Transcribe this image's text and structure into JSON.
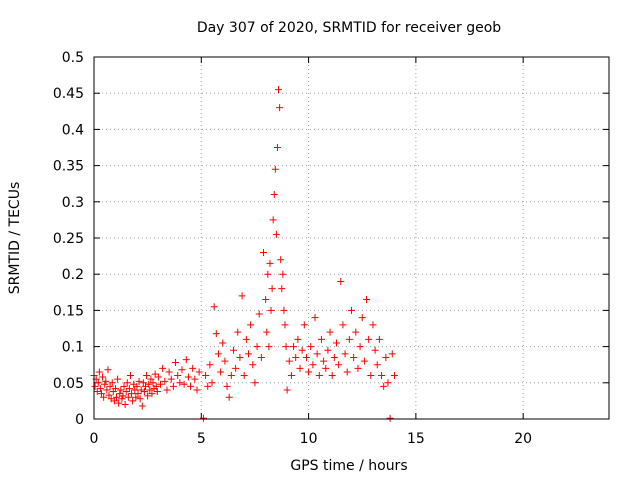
{
  "chart_data": {
    "type": "scatter",
    "title": "Day 307 of 2020, SRMTID for receiver geob",
    "xlabel": "GPS time / hours",
    "ylabel": "SRMTID / TECUs",
    "xlim": [
      0,
      24
    ],
    "ylim": [
      0,
      0.5
    ],
    "x_ticks": [
      0,
      5,
      10,
      15,
      20
    ],
    "x_tick_labels": [
      "0",
      "5",
      "10",
      "15",
      "20"
    ],
    "y_ticks": [
      0,
      0.05,
      0.1,
      0.15,
      0.2,
      0.25,
      0.3,
      0.35,
      0.4,
      0.45,
      0.5
    ],
    "y_tick_labels": [
      "0",
      "0.05",
      "0.1",
      "0.15",
      "0.2",
      "0.25",
      "0.3",
      "0.35",
      "0.4",
      "0.45",
      "0.5"
    ],
    "grid": true,
    "marker_color": "#ff0000",
    "series": [
      {
        "name": "SRMTID",
        "marker": "plus",
        "points": [
          [
            0.0,
            0.06
          ],
          [
            0.05,
            0.045
          ],
          [
            0.1,
            0.055
          ],
          [
            0.15,
            0.038
          ],
          [
            0.2,
            0.05
          ],
          [
            0.25,
            0.065
          ],
          [
            0.3,
            0.042
          ],
          [
            0.35,
            0.035
          ],
          [
            0.4,
            0.058
          ],
          [
            0.45,
            0.03
          ],
          [
            0.5,
            0.048
          ],
          [
            0.55,
            0.052
          ],
          [
            0.6,
            0.04
          ],
          [
            0.65,
            0.068
          ],
          [
            0.7,
            0.033
          ],
          [
            0.75,
            0.045
          ],
          [
            0.8,
            0.028
          ],
          [
            0.85,
            0.05
          ],
          [
            0.9,
            0.038
          ],
          [
            0.95,
            0.025
          ],
          [
            1.0,
            0.042
          ],
          [
            1.05,
            0.03
          ],
          [
            1.1,
            0.055
          ],
          [
            1.15,
            0.022
          ],
          [
            1.2,
            0.035
          ],
          [
            1.25,
            0.04
          ],
          [
            1.3,
            0.028
          ],
          [
            1.35,
            0.032
          ],
          [
            1.4,
            0.045
          ],
          [
            1.45,
            0.02
          ],
          [
            1.5,
            0.038
          ],
          [
            1.55,
            0.05
          ],
          [
            1.6,
            0.03
          ],
          [
            1.65,
            0.042
          ],
          [
            1.7,
            0.06
          ],
          [
            1.75,
            0.035
          ],
          [
            1.8,
            0.025
          ],
          [
            1.85,
            0.048
          ],
          [
            1.9,
            0.04
          ],
          [
            1.95,
            0.03
          ],
          [
            2.0,
            0.045
          ],
          [
            2.05,
            0.035
          ],
          [
            2.1,
            0.052
          ],
          [
            2.15,
            0.028
          ],
          [
            2.2,
            0.04
          ],
          [
            2.25,
            0.018
          ],
          [
            2.3,
            0.05
          ],
          [
            2.35,
            0.038
          ],
          [
            2.4,
            0.045
          ],
          [
            2.45,
            0.06
          ],
          [
            2.5,
            0.032
          ],
          [
            2.55,
            0.048
          ],
          [
            2.6,
            0.04
          ],
          [
            2.65,
            0.055
          ],
          [
            2.7,
            0.035
          ],
          [
            2.75,
            0.05
          ],
          [
            2.8,
            0.042
          ],
          [
            2.85,
            0.062
          ],
          [
            2.9,
            0.045
          ],
          [
            2.95,
            0.038
          ],
          [
            3.0,
            0.058
          ],
          [
            3.1,
            0.048
          ],
          [
            3.2,
            0.07
          ],
          [
            3.3,
            0.052
          ],
          [
            3.4,
            0.04
          ],
          [
            3.5,
            0.065
          ],
          [
            3.6,
            0.055
          ],
          [
            3.7,
            0.045
          ],
          [
            3.8,
            0.078
          ],
          [
            3.9,
            0.06
          ],
          [
            4.0,
            0.05
          ],
          [
            4.1,
            0.068
          ],
          [
            4.2,
            0.048
          ],
          [
            4.3,
            0.082
          ],
          [
            4.4,
            0.058
          ],
          [
            4.5,
            0.045
          ],
          [
            4.6,
            0.07
          ],
          [
            4.7,
            0.055
          ],
          [
            4.8,
            0.04
          ],
          [
            4.9,
            0.065
          ],
          [
            5.1,
            0.001
          ],
          [
            5.2,
            0.06
          ],
          [
            5.3,
            0.045
          ],
          [
            5.4,
            0.075
          ],
          [
            5.5,
            0.05
          ],
          [
            5.6,
            0.155
          ],
          [
            5.7,
            0.118
          ],
          [
            5.8,
            0.09
          ],
          [
            5.9,
            0.065
          ],
          [
            6.0,
            0.105
          ],
          [
            6.1,
            0.08
          ],
          [
            6.2,
            0.045
          ],
          [
            6.3,
            0.03
          ],
          [
            6.4,
            0.06
          ],
          [
            6.5,
            0.095
          ],
          [
            6.6,
            0.07
          ],
          [
            6.7,
            0.12
          ],
          [
            6.8,
            0.085
          ],
          [
            6.9,
            0.17
          ],
          [
            7.0,
            0.06
          ],
          [
            7.1,
            0.11
          ],
          [
            7.2,
            0.09
          ],
          [
            7.3,
            0.13
          ],
          [
            7.4,
            0.075
          ],
          [
            7.5,
            0.05
          ],
          [
            7.6,
            0.1
          ],
          [
            7.7,
            0.145
          ],
          [
            7.8,
            0.085
          ],
          [
            7.9,
            0.23
          ],
          [
            8.0,
            0.165
          ],
          [
            8.05,
            0.12
          ],
          [
            8.1,
            0.2
          ],
          [
            8.15,
            0.1
          ],
          [
            8.2,
            0.215
          ],
          [
            8.25,
            0.15
          ],
          [
            8.3,
            0.18
          ],
          [
            8.35,
            0.275
          ],
          [
            8.4,
            0.31
          ],
          [
            8.45,
            0.345
          ],
          [
            8.5,
            0.255
          ],
          [
            8.55,
            0.375
          ],
          [
            8.6,
            0.455
          ],
          [
            8.65,
            0.43
          ],
          [
            8.7,
            0.22
          ],
          [
            8.75,
            0.18
          ],
          [
            8.8,
            0.2
          ],
          [
            8.85,
            0.15
          ],
          [
            8.9,
            0.13
          ],
          [
            8.95,
            0.1
          ],
          [
            9.0,
            0.04
          ],
          [
            9.1,
            0.08
          ],
          [
            9.2,
            0.06
          ],
          [
            9.3,
            0.1
          ],
          [
            9.4,
            0.085
          ],
          [
            9.5,
            0.11
          ],
          [
            9.6,
            0.07
          ],
          [
            9.7,
            0.095
          ],
          [
            9.8,
            0.13
          ],
          [
            9.9,
            0.085
          ],
          [
            10.0,
            0.065
          ],
          [
            10.1,
            0.1
          ],
          [
            10.2,
            0.075
          ],
          [
            10.3,
            0.14
          ],
          [
            10.4,
            0.09
          ],
          [
            10.5,
            0.06
          ],
          [
            10.6,
            0.11
          ],
          [
            10.7,
            0.08
          ],
          [
            10.8,
            0.07
          ],
          [
            10.9,
            0.095
          ],
          [
            11.0,
            0.12
          ],
          [
            11.1,
            0.06
          ],
          [
            11.2,
            0.085
          ],
          [
            11.3,
            0.105
          ],
          [
            11.4,
            0.075
          ],
          [
            11.5,
            0.19
          ],
          [
            11.6,
            0.13
          ],
          [
            11.7,
            0.09
          ],
          [
            11.8,
            0.065
          ],
          [
            11.9,
            0.11
          ],
          [
            12.0,
            0.15
          ],
          [
            12.1,
            0.085
          ],
          [
            12.2,
            0.12
          ],
          [
            12.3,
            0.07
          ],
          [
            12.4,
            0.1
          ],
          [
            12.5,
            0.14
          ],
          [
            12.6,
            0.08
          ],
          [
            12.7,
            0.165
          ],
          [
            12.8,
            0.11
          ],
          [
            12.9,
            0.06
          ],
          [
            13.0,
            0.13
          ],
          [
            13.1,
            0.095
          ],
          [
            13.2,
            0.075
          ],
          [
            13.3,
            0.11
          ],
          [
            13.4,
            0.06
          ],
          [
            13.5,
            0.045
          ],
          [
            13.6,
            0.085
          ],
          [
            13.7,
            0.05
          ],
          [
            13.8,
            0.001
          ],
          [
            13.9,
            0.09
          ],
          [
            14.0,
            0.06
          ]
        ]
      }
    ]
  }
}
